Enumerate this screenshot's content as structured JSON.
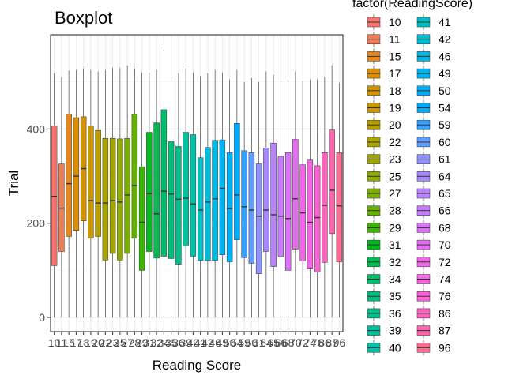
{
  "chart_data": {
    "type": "boxplot",
    "title": "Boxplot",
    "xlabel": "Reading Score",
    "ylabel": "Trial",
    "yticks": [
      0,
      200,
      400
    ],
    "ylim": [
      -30,
      600
    ],
    "grid": true,
    "legend": {
      "title": "factor(ReadingScore)",
      "placement": "right",
      "columns": 2
    },
    "categories": [
      "10",
      "11",
      "15",
      "17",
      "18",
      "19",
      "20",
      "22",
      "23",
      "25",
      "27",
      "28",
      "29",
      "31",
      "32",
      "34",
      "35",
      "36",
      "39",
      "40",
      "41",
      "42",
      "46",
      "49",
      "50",
      "54",
      "59",
      "60",
      "61",
      "64",
      "65",
      "66",
      "68",
      "70",
      "72",
      "74",
      "76",
      "86",
      "87",
      "96"
    ],
    "colors": [
      "#F8766D",
      "#F27D53",
      "#E7861B",
      "#DE8C00",
      "#D39200",
      "#C79800",
      "#B79F00",
      "#AAA400",
      "#9DA700",
      "#8EAB00",
      "#7CAE00",
      "#64B200",
      "#39B600",
      "#00B91E",
      "#00BB4E",
      "#00BE6C",
      "#00BF7D",
      "#00C08B",
      "#00C19F",
      "#00C1AA",
      "#00BFC4",
      "#00BCD6",
      "#00B9E3",
      "#00B4EF",
      "#00B0F6",
      "#00ABFD",
      "#35A2FF",
      "#619CFF",
      "#8F91FF",
      "#A58AFF",
      "#B983FF",
      "#C77CFF",
      "#DC71FA",
      "#E76BF3",
      "#F066E8",
      "#F564E3",
      "#FC61D5",
      "#FF62BC",
      "#FF65AF",
      "#FF6C91"
    ],
    "series": [
      {
        "name": "10",
        "whisker_low": 0,
        "q1": 110,
        "median": 257,
        "q3": 406,
        "whisker_high": 518
      },
      {
        "name": "11",
        "whisker_low": 0,
        "q1": 140,
        "median": 232,
        "q3": 326,
        "whisker_high": 510
      },
      {
        "name": "15",
        "whisker_low": 0,
        "q1": 172,
        "median": 284,
        "q3": 432,
        "whisker_high": 524
      },
      {
        "name": "17",
        "whisker_low": 0,
        "q1": 185,
        "median": 300,
        "q3": 424,
        "whisker_high": 525
      },
      {
        "name": "18",
        "whisker_low": 0,
        "q1": 205,
        "median": 316,
        "q3": 426,
        "whisker_high": 528
      },
      {
        "name": "19",
        "whisker_low": 0,
        "q1": 168,
        "median": 248,
        "q3": 406,
        "whisker_high": 525
      },
      {
        "name": "20",
        "whisker_low": 0,
        "q1": 172,
        "median": 243,
        "q3": 397,
        "whisker_high": 522
      },
      {
        "name": "22",
        "whisker_low": 0,
        "q1": 122,
        "median": 243,
        "q3": 380,
        "whisker_high": 525
      },
      {
        "name": "23",
        "whisker_low": 0,
        "q1": 136,
        "median": 248,
        "q3": 380,
        "whisker_high": 530
      },
      {
        "name": "25",
        "whisker_low": 0,
        "q1": 122,
        "median": 245,
        "q3": 379,
        "whisker_high": 530
      },
      {
        "name": "27",
        "whisker_low": 0,
        "q1": 136,
        "median": 260,
        "q3": 380,
        "whisker_high": 535
      },
      {
        "name": "28",
        "whisker_low": 0,
        "q1": 168,
        "median": 280,
        "q3": 432,
        "whisker_high": 528
      },
      {
        "name": "29",
        "whisker_low": 0,
        "q1": 100,
        "median": 202,
        "q3": 320,
        "whisker_high": 520
      },
      {
        "name": "31",
        "whisker_low": 0,
        "q1": 140,
        "median": 263,
        "q3": 393,
        "whisker_high": 520
      },
      {
        "name": "32",
        "whisker_low": 0,
        "q1": 126,
        "median": 220,
        "q3": 413,
        "whisker_high": 525
      },
      {
        "name": "34",
        "whisker_low": 0,
        "q1": 130,
        "median": 268,
        "q3": 441,
        "whisker_high": 568
      },
      {
        "name": "35",
        "whisker_low": 0,
        "q1": 125,
        "median": 262,
        "q3": 373,
        "whisker_high": 512
      },
      {
        "name": "36",
        "whisker_low": 0,
        "q1": 113,
        "median": 251,
        "q3": 363,
        "whisker_high": 518
      },
      {
        "name": "39",
        "whisker_low": 0,
        "q1": 152,
        "median": 253,
        "q3": 393,
        "whisker_high": 528
      },
      {
        "name": "40",
        "whisker_low": 0,
        "q1": 130,
        "median": 241,
        "q3": 388,
        "whisker_high": 520
      },
      {
        "name": "41",
        "whisker_low": 0,
        "q1": 121,
        "median": 228,
        "q3": 339,
        "whisker_high": 512
      },
      {
        "name": "42",
        "whisker_low": 0,
        "q1": 121,
        "median": 245,
        "q3": 361,
        "whisker_high": 518
      },
      {
        "name": "46",
        "whisker_low": 0,
        "q1": 121,
        "median": 252,
        "q3": 376,
        "whisker_high": 525
      },
      {
        "name": "49",
        "whisker_low": 0,
        "q1": 133,
        "median": 274,
        "q3": 377,
        "whisker_high": 520
      },
      {
        "name": "50",
        "whisker_low": 0,
        "q1": 118,
        "median": 231,
        "q3": 350,
        "whisker_high": 505
      },
      {
        "name": "54",
        "whisker_low": 0,
        "q1": 165,
        "median": 260,
        "q3": 412,
        "whisker_high": 525
      },
      {
        "name": "59",
        "whisker_low": 0,
        "q1": 127,
        "median": 235,
        "q3": 354,
        "whisker_high": 500
      },
      {
        "name": "60",
        "whisker_low": 0,
        "q1": 115,
        "median": 228,
        "q3": 350,
        "whisker_high": 508
      },
      {
        "name": "61",
        "whisker_low": 0,
        "q1": 93,
        "median": 215,
        "q3": 326,
        "whisker_high": 500
      },
      {
        "name": "64",
        "whisker_low": 0,
        "q1": 140,
        "median": 228,
        "q3": 360,
        "whisker_high": 522
      },
      {
        "name": "65",
        "whisker_low": 0,
        "q1": 108,
        "median": 218,
        "q3": 370,
        "whisker_high": 515
      },
      {
        "name": "66",
        "whisker_low": 0,
        "q1": 130,
        "median": 215,
        "q3": 342,
        "whisker_high": 500
      },
      {
        "name": "68",
        "whisker_low": 0,
        "q1": 100,
        "median": 210,
        "q3": 350,
        "whisker_high": 505
      },
      {
        "name": "70",
        "whisker_low": 0,
        "q1": 145,
        "median": 252,
        "q3": 378,
        "whisker_high": 522
      },
      {
        "name": "72",
        "whisker_low": 0,
        "q1": 120,
        "median": 222,
        "q3": 324,
        "whisker_high": 502
      },
      {
        "name": "74",
        "whisker_low": 0,
        "q1": 103,
        "median": 202,
        "q3": 334,
        "whisker_high": 505
      },
      {
        "name": "76",
        "whisker_low": 0,
        "q1": 97,
        "median": 212,
        "q3": 322,
        "whisker_high": 505
      },
      {
        "name": "86",
        "whisker_low": 0,
        "q1": 117,
        "median": 238,
        "q3": 350,
        "whisker_high": 510
      },
      {
        "name": "87",
        "whisker_low": 0,
        "q1": 178,
        "median": 270,
        "q3": 398,
        "whisker_high": 535
      },
      {
        "name": "96",
        "whisker_low": 0,
        "q1": 118,
        "median": 237,
        "q3": 350,
        "whisker_high": 498
      }
    ]
  }
}
